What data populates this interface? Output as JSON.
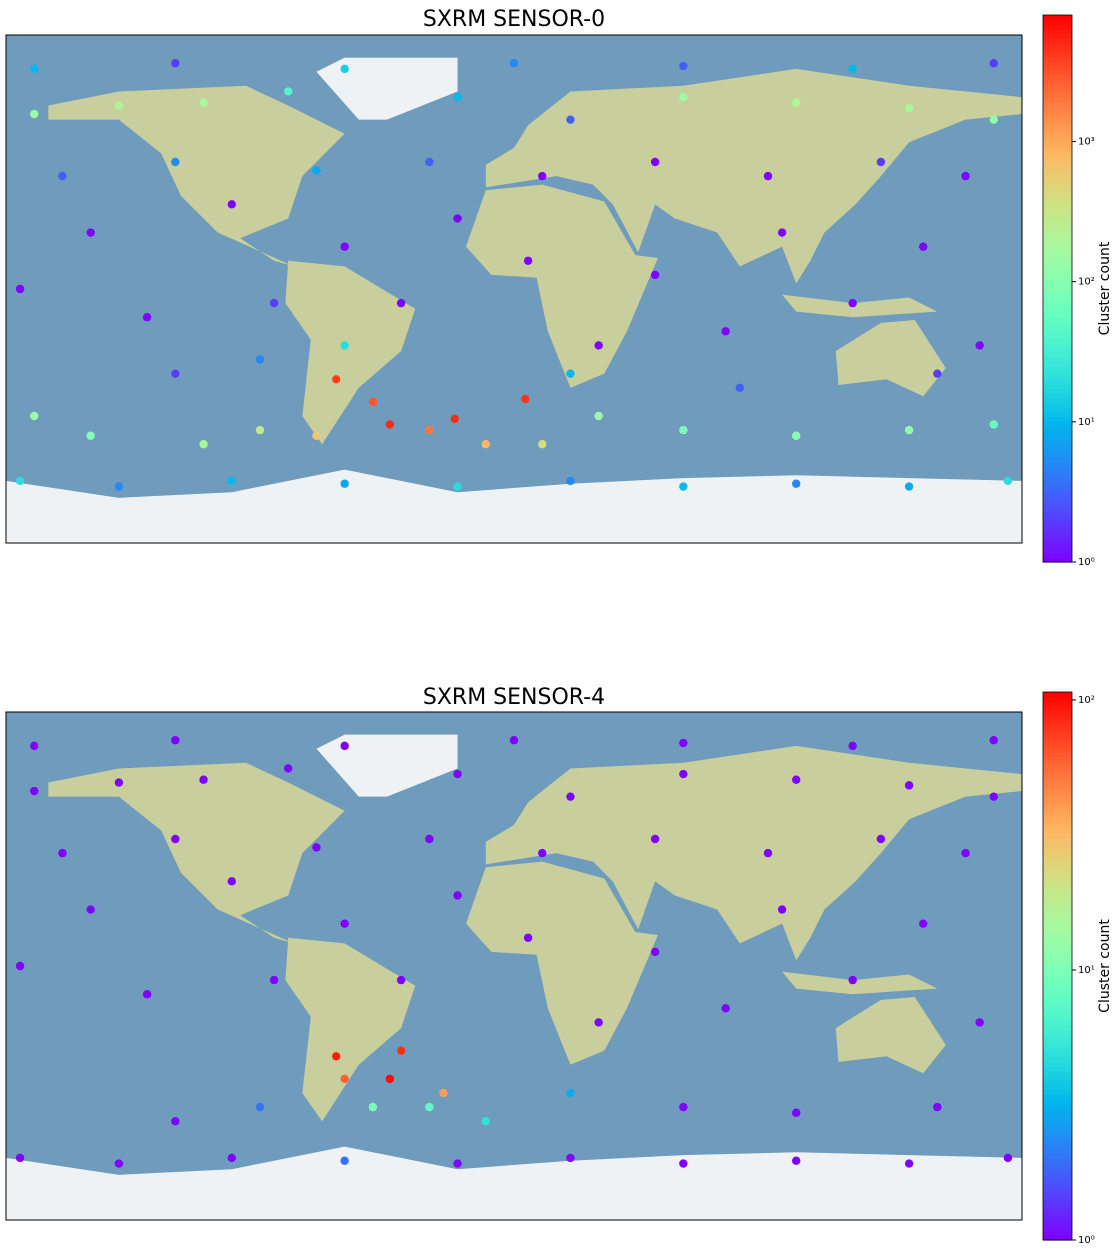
{
  "chart_data": [
    {
      "type": "scatter",
      "title": "SXRM SENSOR-0",
      "xlim": [
        -180,
        180
      ],
      "ylim": [
        -90,
        90
      ],
      "x": [
        -170,
        -140,
        -110,
        -80,
        -20,
        20,
        60,
        100,
        140,
        170,
        -175,
        -150,
        -130,
        -100,
        -85,
        -60,
        -40,
        -20,
        5,
        30,
        50,
        75,
        95,
        120,
        145,
        165,
        -160,
        -120,
        -70,
        -30,
        10,
        50,
        90,
        130,
        160,
        -63,
        -44,
        -21,
        4,
        -50,
        -30,
        -10,
        -70,
        -90,
        -110,
        10,
        30,
        -150,
        60,
        100,
        140,
        170,
        -170,
        -120,
        -90,
        -60,
        20,
        80,
        150,
        -175,
        -140,
        -100,
        -60,
        -20,
        20,
        60,
        100,
        140,
        175,
        -170,
        -120,
        -60,
        0,
        60,
        120,
        170
      ],
      "values": [
        62,
        65,
        66,
        70,
        68,
        60,
        68,
        66,
        64,
        60,
        0,
        20,
        -10,
        30,
        -5,
        15,
        -5,
        25,
        10,
        -20,
        5,
        -15,
        20,
        -5,
        15,
        -20,
        40,
        45,
        42,
        45,
        40,
        45,
        40,
        45,
        40,
        -32,
        -48,
        -46,
        -39,
        -40,
        -50,
        -55,
        -52,
        -50,
        -55,
        -55,
        -45,
        -52,
        -50,
        -52,
        -50,
        -48,
        -45,
        -30,
        -25,
        -20,
        -30,
        -35,
        -30,
        -68,
        -70,
        -68,
        -69,
        -70,
        -68,
        -70,
        -69,
        -70,
        -68,
        78,
        80,
        78,
        80,
        79,
        78,
        80
      ],
      "color_values": [
        150,
        200,
        180,
        40,
        10,
        3,
        150,
        200,
        180,
        120,
        1,
        1,
        1,
        1,
        2,
        1,
        1,
        1,
        1,
        1,
        1,
        1,
        1,
        1,
        1,
        1,
        3,
        5,
        8,
        3,
        1,
        1,
        1,
        2,
        1,
        4000,
        5000,
        5000,
        4500,
        3000,
        2000,
        800,
        600,
        300,
        200,
        400,
        150,
        100,
        80,
        100,
        120,
        60,
        150,
        2,
        5,
        20,
        10,
        3,
        2,
        20,
        5,
        10,
        8,
        20,
        5,
        10,
        5,
        8,
        20,
        10,
        2,
        15,
        5,
        3,
        10,
        2
      ],
      "colorbar": {
        "label": "Cluster count",
        "scale": "log",
        "colormap": "rainbow",
        "lim": [
          1,
          8000
        ],
        "ticks": [
          {
            "value": 1,
            "label": "10⁰"
          },
          {
            "value": 10,
            "label": "10¹"
          },
          {
            "value": 100,
            "label": "10²"
          },
          {
            "value": 1000,
            "label": "10³"
          }
        ]
      }
    },
    {
      "type": "scatter",
      "title": "SXRM SENSOR-4",
      "xlim": [
        -180,
        180
      ],
      "ylim": [
        -90,
        90
      ],
      "x": [
        -170,
        -140,
        -110,
        -80,
        -20,
        20,
        60,
        100,
        140,
        170,
        -175,
        -150,
        -130,
        -100,
        -85,
        -60,
        -40,
        -20,
        5,
        30,
        50,
        75,
        95,
        120,
        145,
        165,
        -160,
        -120,
        -70,
        -30,
        10,
        50,
        90,
        130,
        160,
        -63,
        -44,
        -40,
        -25,
        -60,
        -10,
        -50,
        -30,
        -90,
        -120,
        20,
        60,
        100,
        150,
        -175,
        -140,
        -100,
        -60,
        -20,
        20,
        60,
        100,
        140,
        175,
        -170,
        -120,
        -60,
        0,
        60,
        120,
        170
      ],
      "values": [
        62,
        65,
        66,
        70,
        68,
        60,
        68,
        66,
        64,
        60,
        0,
        20,
        -10,
        30,
        -5,
        15,
        -5,
        25,
        10,
        -20,
        5,
        -15,
        20,
        -5,
        15,
        -20,
        40,
        45,
        42,
        45,
        40,
        45,
        40,
        45,
        40,
        -32,
        -40,
        -30,
        -45,
        -40,
        -55,
        -50,
        -50,
        -50,
        -55,
        -45,
        -50,
        -52,
        -50,
        -68,
        -70,
        -68,
        -69,
        -70,
        -68,
        -70,
        -69,
        -70,
        -68,
        78,
        80,
        78,
        80,
        79,
        78,
        80
      ],
      "color_values": [
        1,
        1,
        1,
        1,
        1,
        1,
        1,
        1,
        1,
        1,
        1,
        1,
        1,
        1,
        1,
        1,
        1,
        1,
        1,
        1,
        1,
        1,
        1,
        1,
        1,
        1,
        1,
        1,
        1,
        1,
        1,
        1,
        1,
        1,
        1,
        90,
        100,
        80,
        40,
        60,
        5,
        10,
        8,
        2,
        1,
        3,
        1,
        1,
        1,
        1,
        1,
        1,
        2,
        1,
        1,
        1,
        1,
        1,
        1,
        1,
        1,
        1,
        1,
        1,
        1,
        1
      ],
      "colorbar": {
        "label": "Cluster count",
        "scale": "log",
        "colormap": "rainbow",
        "lim": [
          1,
          107
        ],
        "ticks": [
          {
            "value": 1,
            "label": "10⁰"
          },
          {
            "value": 10,
            "label": "10¹"
          },
          {
            "value": 100,
            "label": "10²"
          }
        ]
      }
    }
  ]
}
